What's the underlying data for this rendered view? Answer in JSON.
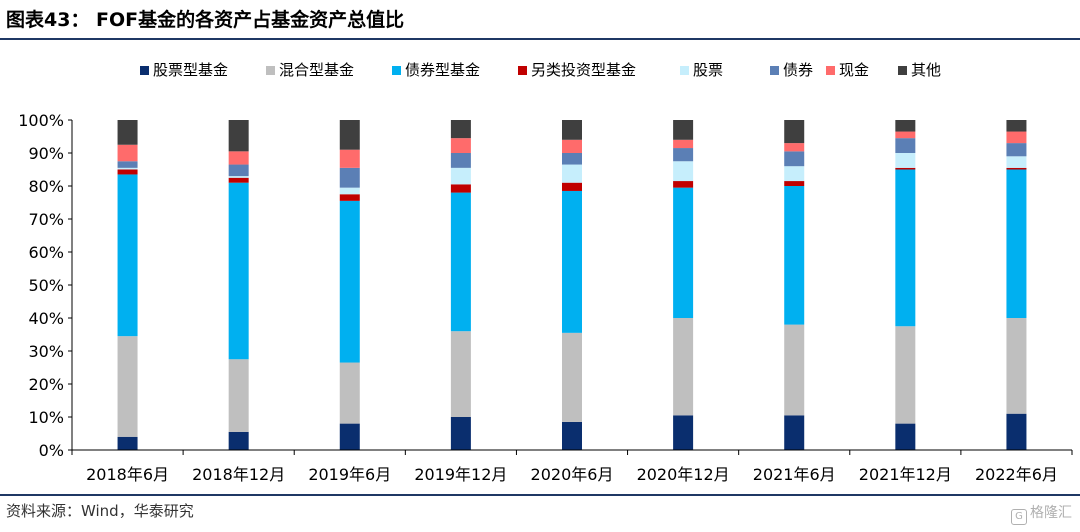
{
  "title": "图表43： FOF基金的各资产占基金资产总值比",
  "source": "资料来源：Wind，华泰研究",
  "watermark": "格隆汇",
  "chart_data": {
    "type": "bar",
    "stacked": true,
    "categories": [
      "2018年6月",
      "2018年12月",
      "2019年6月",
      "2019年12月",
      "2020年6月",
      "2020年12月",
      "2021年6月",
      "2021年12月",
      "2022年6月"
    ],
    "ylim": [
      0,
      100
    ],
    "yticks": [
      "0%",
      "10%",
      "20%",
      "30%",
      "40%",
      "50%",
      "60%",
      "70%",
      "80%",
      "90%",
      "100%"
    ],
    "legend_position": "top",
    "grid": false,
    "series": [
      {
        "name": "股票型基金",
        "color": "#0a2e6e",
        "values": [
          4,
          5.5,
          8,
          10,
          8.5,
          10.5,
          10.5,
          8,
          11
        ]
      },
      {
        "name": "混合型基金",
        "color": "#bfbfbf",
        "values": [
          30.5,
          22,
          18.5,
          26,
          27,
          29.5,
          27.5,
          29.5,
          29
        ]
      },
      {
        "name": "债券型基金",
        "color": "#00b0f0",
        "values": [
          49,
          53.5,
          49,
          42,
          43,
          39.5,
          42,
          47.5,
          45
        ]
      },
      {
        "name": "另类投资型基金",
        "color": "#c00000",
        "values": [
          1.5,
          1.5,
          2,
          2.5,
          2.5,
          2,
          1.5,
          0.5,
          0.5
        ]
      },
      {
        "name": "股票",
        "color": "#c6eefc",
        "values": [
          0.5,
          0.5,
          2,
          5,
          5.5,
          6,
          4.5,
          4.5,
          3.5
        ]
      },
      {
        "name": "债券",
        "color": "#5b7fb5",
        "values": [
          2,
          3.5,
          6,
          4.5,
          3.5,
          4,
          4.5,
          4.5,
          4
        ]
      },
      {
        "name": "现金",
        "color": "#ff6b6b",
        "values": [
          5,
          4,
          5.5,
          4.5,
          4,
          2.5,
          2.5,
          2,
          3.5
        ]
      },
      {
        "name": "其他",
        "color": "#3f3f3f",
        "values": [
          7.5,
          9.5,
          9,
          5.5,
          6,
          6,
          7,
          3.5,
          3.5
        ]
      }
    ]
  }
}
